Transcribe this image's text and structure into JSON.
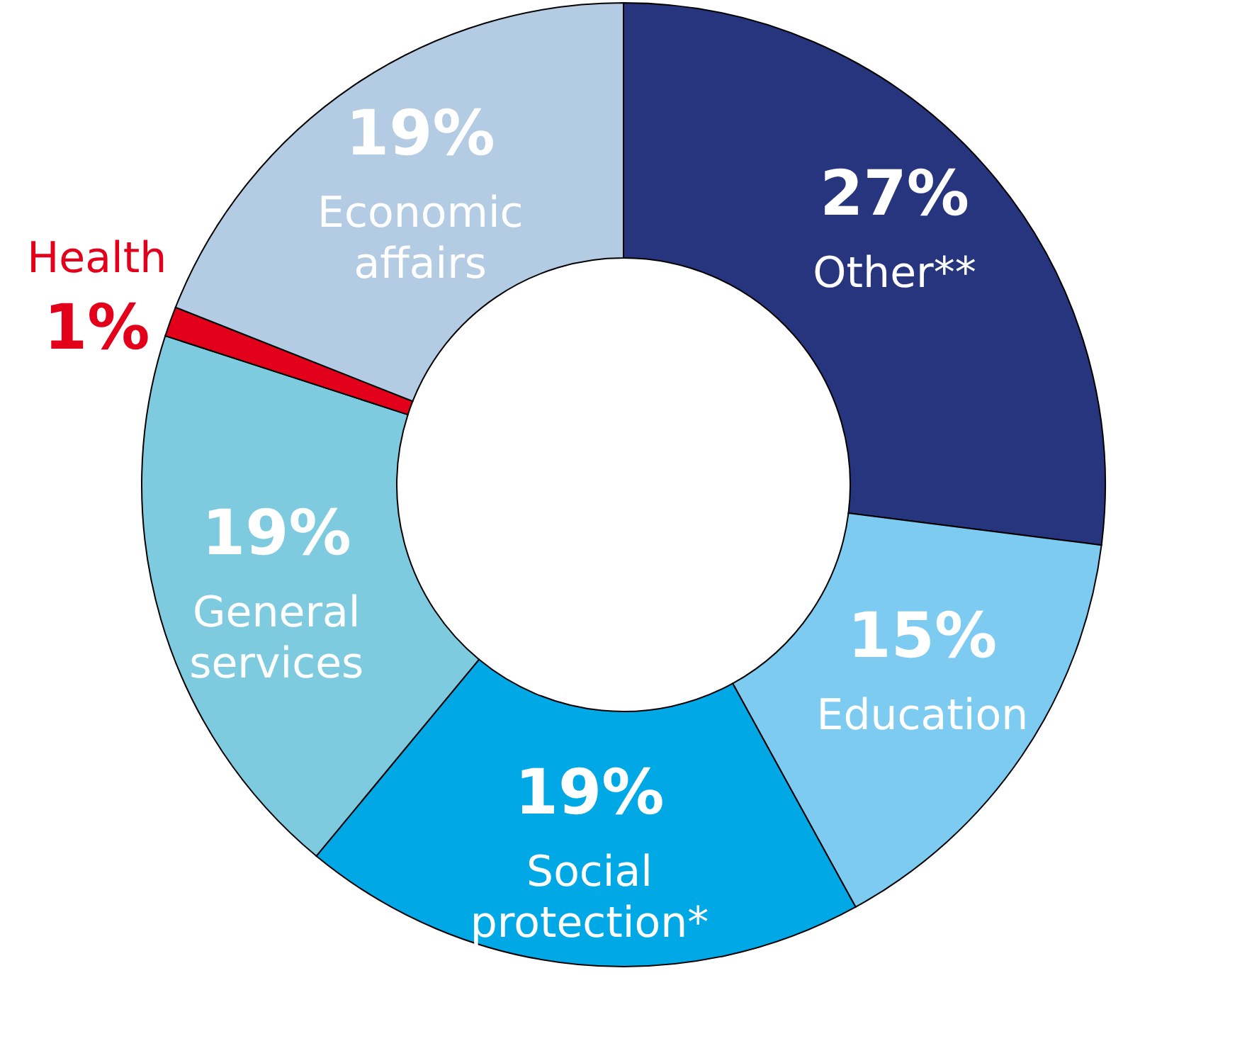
{
  "chart_data": {
    "type": "donut",
    "categories": [
      "Other**",
      "Education",
      "Social protection*",
      "General services",
      "Health",
      "Economic affairs"
    ],
    "values": [
      27,
      15,
      19,
      19,
      1,
      19
    ],
    "value_labels": [
      "27%",
      "15%",
      "19%",
      "19%",
      "1%",
      "19%"
    ],
    "colors": [
      "#27357e",
      "#7dcbf0",
      "#00a8e6",
      "#7ecbe0",
      "#e2001a",
      "#b3cbe3"
    ]
  }
}
